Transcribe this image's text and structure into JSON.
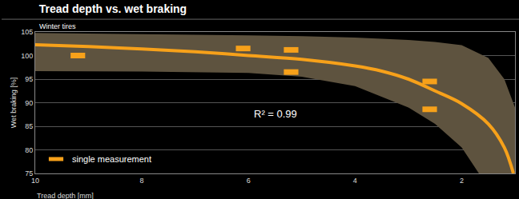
{
  "chart_data": {
    "type": "scatter",
    "title": "Tread depth vs. wet braking",
    "subtitle": "Winter tires",
    "xlabel": "Tread depth [mm]",
    "ylabel": "Wet braking [%]",
    "xlim": [
      10,
      1.0
    ],
    "xticks": [
      10,
      8,
      6,
      4,
      2
    ],
    "ylim": [
      75,
      105
    ],
    "yticks": [
      75,
      80,
      85,
      90,
      95,
      100,
      105
    ],
    "grid": "y",
    "legend": "bottom left",
    "annotations": [
      {
        "text": "R² = 0.99",
        "x": 5.5,
        "y": 87.7
      }
    ],
    "series": [
      {
        "type": "band",
        "color": "#5e533f",
        "x": [
          10,
          8,
          6,
          5,
          4,
          3,
          2.5,
          2,
          1.5,
          1.2,
          1.0
        ],
        "upper": [
          104.8,
          104.6,
          104.3,
          104.1,
          103.8,
          103.3,
          102.9,
          102.2,
          99.5,
          95,
          89
        ],
        "lower": [
          96.7,
          96.6,
          96.3,
          95.5,
          93.5,
          89,
          85.5,
          80.5,
          72,
          66,
          62
        ]
      },
      {
        "type": "line",
        "color": "#f7a11a",
        "x": [
          10,
          9,
          8,
          7,
          6,
          5,
          4,
          3.5,
          3,
          2.5,
          2,
          1.5,
          1.2,
          1.03
        ],
        "values": [
          102.3,
          101.9,
          101.4,
          100.8,
          100.0,
          99.2,
          97.8,
          96.7,
          95.0,
          92.5,
          89.8,
          85.5,
          80.5,
          75
        ]
      },
      {
        "type": "scatter",
        "name": "single measurement",
        "color": "#f7a11a",
        "marker": "dash",
        "x": [
          9.2,
          6.1,
          5.2,
          5.2,
          2.6,
          2.6
        ],
        "values": [
          100.0,
          101.5,
          101.2,
          96.5,
          94.5,
          88.6
        ]
      }
    ]
  }
}
